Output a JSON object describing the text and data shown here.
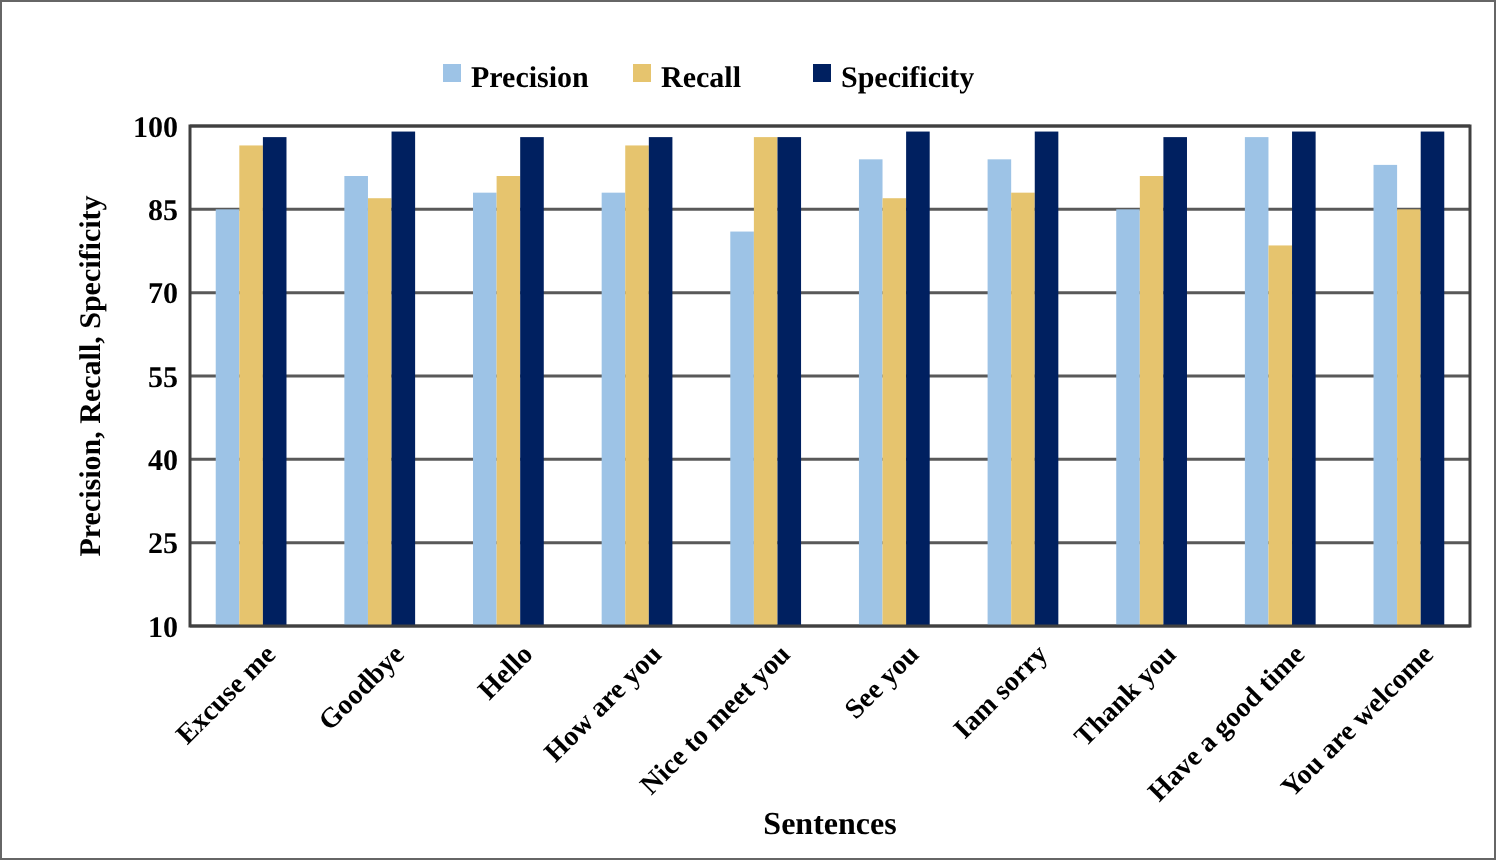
{
  "chart_data": {
    "type": "bar",
    "xlabel": "Sentences",
    "ylabel": "Precision, Recall, Specificity",
    "categories": [
      "Excuse me",
      "Goodbye",
      "Hello",
      "How are you",
      "Nice to meet you",
      "See you",
      "Iam sorry",
      "Thank you",
      "Have a good time",
      "You are welcome"
    ],
    "series": [
      {
        "name": "Precision",
        "color": "#9dc3e6",
        "values": [
          85,
          91,
          88,
          88,
          81,
          94,
          94,
          85,
          98,
          93
        ]
      },
      {
        "name": "Recall",
        "color": "#e6c46e",
        "values": [
          96.5,
          87,
          91,
          96.5,
          98,
          87,
          88,
          91,
          78.5,
          85
        ]
      },
      {
        "name": "Specificity",
        "color": "#002060",
        "values": [
          98,
          99,
          98,
          98,
          98,
          99,
          99,
          98,
          99,
          99
        ]
      }
    ],
    "ylim": [
      10,
      100
    ],
    "yticks": [
      10,
      25,
      40,
      55,
      70,
      85,
      100
    ],
    "grid": "y",
    "legend": "top"
  }
}
